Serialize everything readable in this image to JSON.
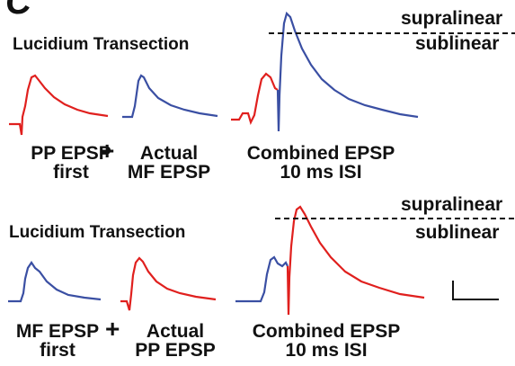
{
  "panel_letter": "C",
  "colors": {
    "pp_trace": "#e0201e",
    "mf_trace": "#3a4fa3",
    "text": "#111111"
  },
  "rows": [
    {
      "title": "Lucidium Transection",
      "first_label": [
        "PP EPSP",
        "first"
      ],
      "plus": "+",
      "actual_label": [
        "Actual",
        "MF EPSP"
      ],
      "combined_label": [
        "Combined EPSP",
        "10 ms ISI"
      ],
      "threshold": {
        "above": "supralinear",
        "below": "sublinear"
      }
    },
    {
      "title": "Lucidium Transection",
      "first_label": [
        "MF EPSP",
        "first"
      ],
      "plus": "+",
      "actual_label": [
        "Actual",
        "PP EPSP"
      ],
      "combined_label": [
        "Combined EPSP",
        "10 ms ISI"
      ],
      "threshold": {
        "above": "supralinear",
        "below": "sublinear"
      }
    }
  ],
  "scale_bar_icon": "scale-bar"
}
